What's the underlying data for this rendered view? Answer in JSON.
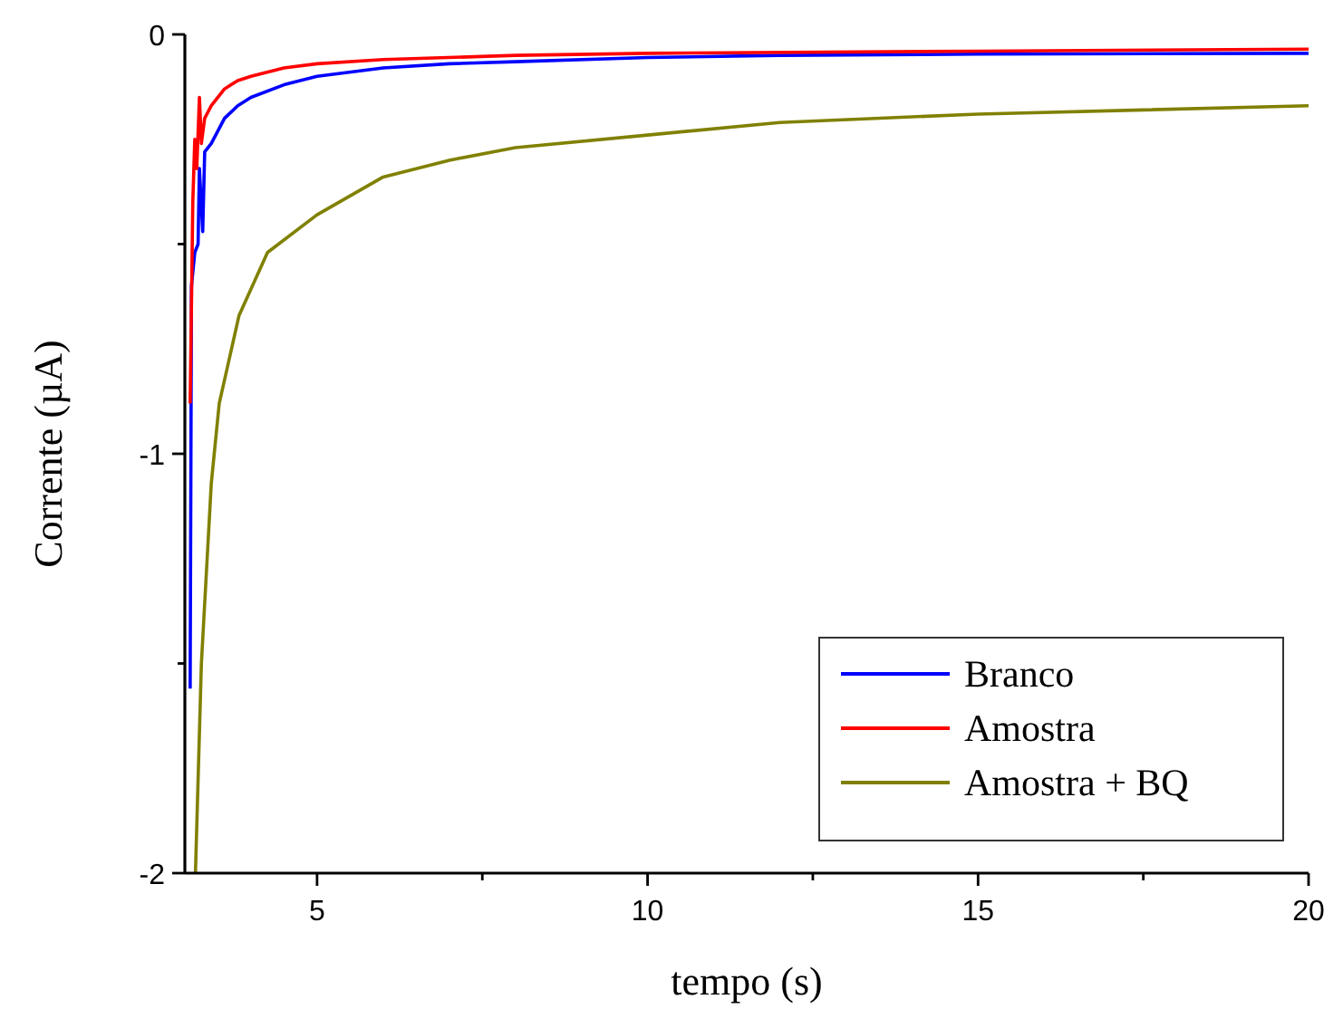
{
  "chart_data": {
    "type": "line",
    "xlabel": "tempo (s)",
    "ylabel": "Corrente (µA)",
    "xlim": [
      3,
      20
    ],
    "ylim": [
      -2,
      0
    ],
    "xticks": [
      5,
      {
        "value": 7.5,
        "label": null
      },
      10,
      {
        "value": 12.5,
        "label": null
      },
      15,
      {
        "value": 17.5,
        "label": null
      },
      20
    ],
    "yticks": [
      -2,
      {
        "value": -1.5,
        "label": null
      },
      -1,
      {
        "value": -0.5,
        "label": null
      },
      0
    ],
    "grid": false,
    "legend": "bottom right",
    "line_style": "solid",
    "series": [
      {
        "name": "Branco",
        "color": "#0000ff",
        "x": [
          3.08,
          3.1,
          3.15,
          3.2,
          3.22,
          3.27,
          3.3,
          3.4,
          3.6,
          3.8,
          4,
          4.5,
          5,
          6,
          7,
          8,
          10,
          12,
          15,
          20
        ],
        "values": [
          -1.56,
          -0.6,
          -0.52,
          -0.5,
          -0.32,
          -0.47,
          -0.28,
          -0.26,
          -0.2,
          -0.17,
          -0.15,
          -0.12,
          -0.1,
          -0.08,
          -0.07,
          -0.065,
          -0.055,
          -0.05,
          -0.047,
          -0.045
        ]
      },
      {
        "name": "Amostra",
        "color": "#ff0000",
        "x": [
          3.08,
          3.12,
          3.15,
          3.18,
          3.22,
          3.25,
          3.3,
          3.4,
          3.6,
          3.8,
          4,
          4.5,
          5,
          6,
          8,
          10,
          15,
          20
        ],
        "values": [
          -0.88,
          -0.4,
          -0.25,
          -0.32,
          -0.15,
          -0.26,
          -0.2,
          -0.17,
          -0.13,
          -0.11,
          -0.1,
          -0.08,
          -0.07,
          -0.06,
          -0.05,
          -0.045,
          -0.04,
          -0.035
        ]
      },
      {
        "name": "Amostra + BQ",
        "color": "#808000",
        "x": [
          3.16,
          3.25,
          3.4,
          3.52,
          3.82,
          4.25,
          5,
          6,
          7,
          8,
          10,
          12,
          15,
          17.5,
          20
        ],
        "values": [
          -2,
          -1.5,
          -1.07,
          -0.88,
          -0.67,
          -0.52,
          -0.43,
          -0.34,
          -0.3,
          -0.27,
          -0.24,
          -0.21,
          -0.19,
          -0.18,
          -0.17
        ]
      }
    ]
  }
}
